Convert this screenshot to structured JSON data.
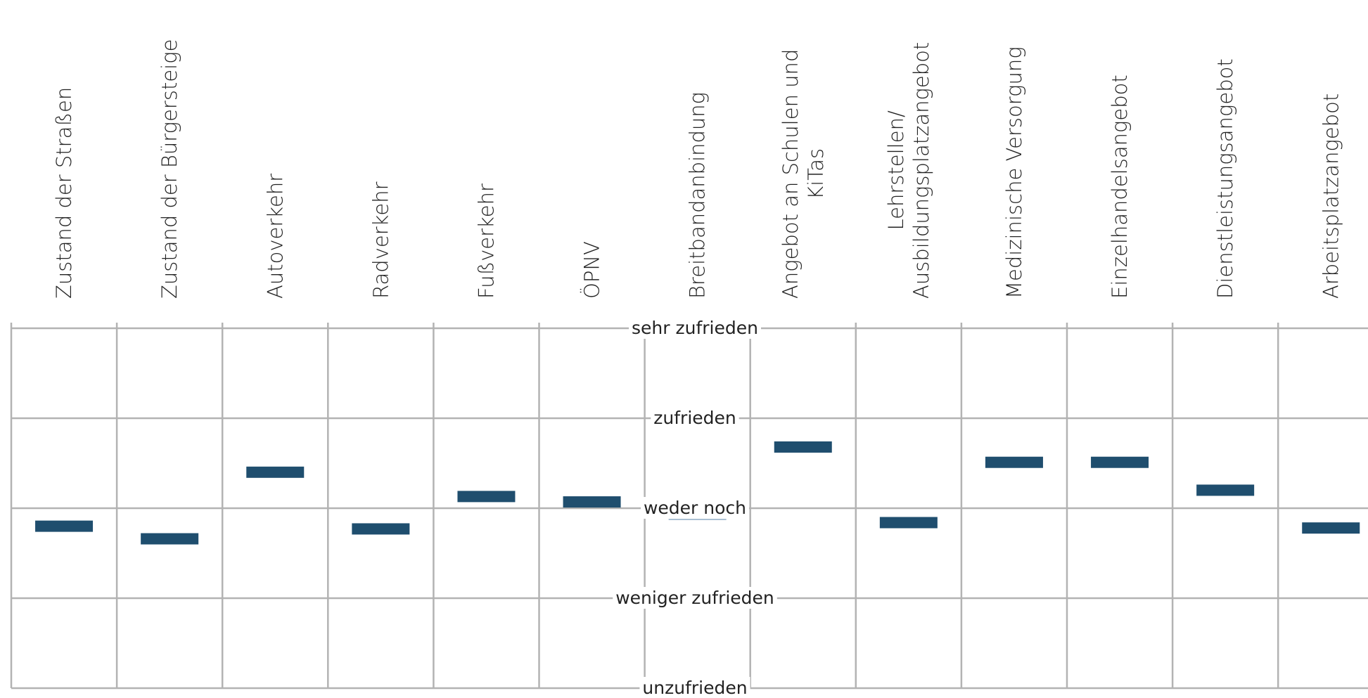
{
  "chart_data": {
    "type": "scatter",
    "categories": [
      [
        "Zustand der Straßen"
      ],
      [
        "Zustand der Bürgersteige"
      ],
      [
        "Autoverkehr"
      ],
      [
        "Radverkehr"
      ],
      [
        "Fußverkehr"
      ],
      [
        "ÖPNV"
      ],
      [
        "Breitbandanbindung"
      ],
      [
        "Angebot an Schulen und",
        "KiTas"
      ],
      [
        "Lehrstellen/",
        "Ausbildungsplatzangebot"
      ],
      [
        "Medizinische Versorgung"
      ],
      [
        "Einzelhandelsangebot"
      ],
      [
        "Dienstleistungsangebot"
      ],
      [
        "Arbeitsplatzangebot"
      ]
    ],
    "levels": [
      "sehr zufrieden",
      "zufrieden",
      "weder noch",
      "weniger zufrieden",
      "unzufrieden"
    ],
    "scale": [
      5,
      4,
      3,
      2,
      1
    ],
    "values": [
      2.8,
      2.66,
      3.4,
      2.77,
      3.13,
      3.07,
      2.93,
      3.68,
      2.84,
      3.51,
      3.51,
      3.2,
      2.78
    ],
    "highlight_index": 6,
    "ylim": [
      1,
      5
    ],
    "colors": {
      "marker": "#1f4e6e",
      "marker_highlight": "#a9bfd3",
      "grid": "#b3b3b3"
    }
  }
}
